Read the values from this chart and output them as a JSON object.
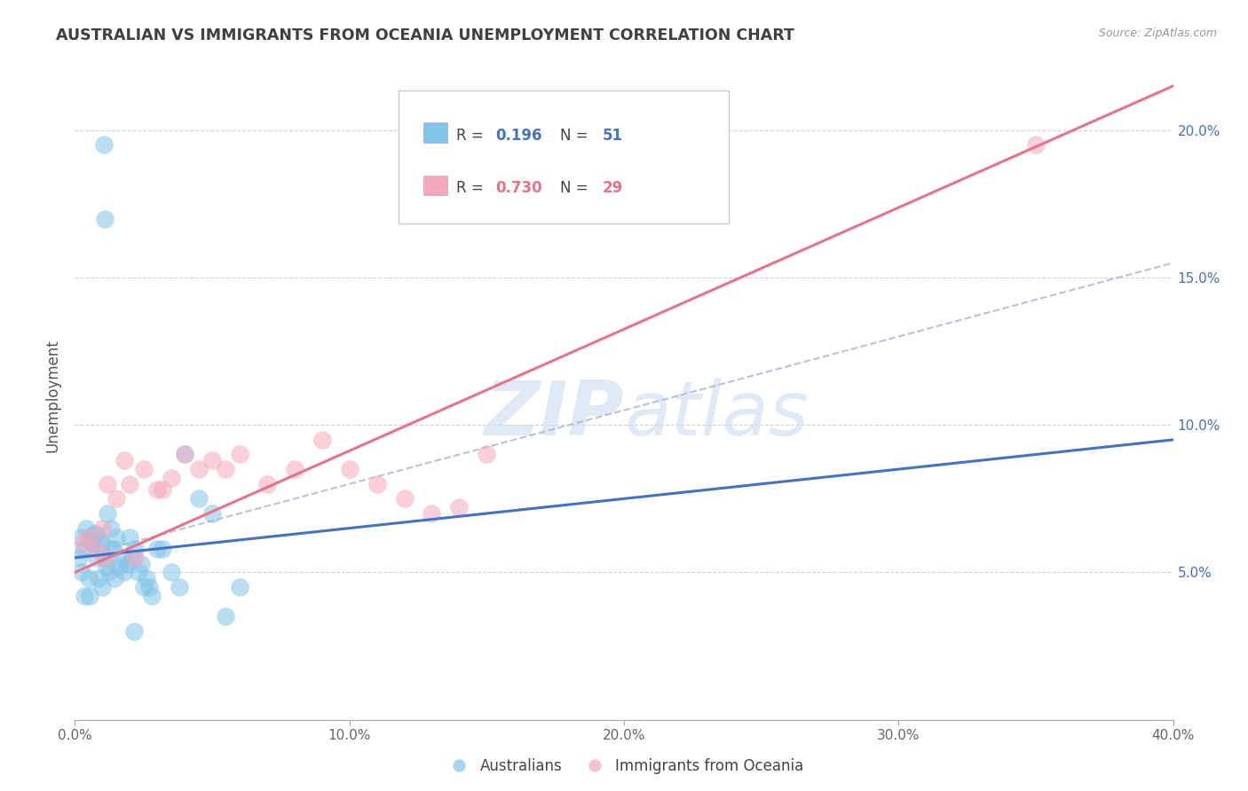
{
  "title": "AUSTRALIAN VS IMMIGRANTS FROM OCEANIA UNEMPLOYMENT CORRELATION CHART",
  "source": "Source: ZipAtlas.com",
  "ylabel": "Unemployment",
  "color_blue": "#82c4e8",
  "color_pink": "#f5a8bc",
  "line_blue": "#4472c4",
  "line_pink": "#e8728c",
  "line_dash": "#b0b8d0",
  "watermark_color": "#ccddf0",
  "background": "#ffffff",
  "grid_color": "#c8c8c8",
  "title_color": "#404040",
  "tick_color_blue": "#4472c4",
  "tick_color_gray": "#666666",
  "aus_x": [
    0.2,
    0.3,
    0.4,
    0.5,
    0.6,
    0.7,
    0.8,
    0.9,
    1.0,
    1.1,
    1.2,
    1.3,
    1.4,
    1.5,
    1.6,
    1.7,
    1.8,
    1.9,
    2.0,
    2.1,
    2.2,
    2.3,
    2.4,
    2.5,
    2.6,
    2.7,
    2.8,
    3.0,
    3.2,
    3.5,
    3.8,
    4.0,
    4.5,
    5.0,
    5.5,
    6.0,
    0.15,
    0.25,
    0.35,
    0.55,
    0.65,
    0.75,
    0.85,
    0.95,
    1.05,
    1.15,
    1.25,
    1.35,
    1.45,
    2.15,
    1.1
  ],
  "aus_y": [
    6.2,
    5.8,
    6.5,
    4.8,
    6.0,
    6.3,
    5.5,
    6.1,
    4.5,
    5.5,
    7.0,
    6.5,
    5.8,
    6.2,
    5.2,
    5.5,
    5.0,
    5.3,
    6.2,
    5.5,
    5.8,
    5.0,
    5.3,
    4.5,
    4.8,
    4.5,
    4.2,
    5.8,
    5.8,
    5.0,
    4.5,
    9.0,
    7.5,
    7.0,
    3.5,
    4.5,
    5.5,
    5.0,
    4.2,
    4.2,
    6.0,
    6.3,
    4.8,
    6.0,
    19.5,
    5.2,
    5.0,
    5.8,
    4.8,
    3.0,
    17.0
  ],
  "imm_x": [
    0.3,
    0.5,
    0.8,
    1.0,
    1.2,
    1.5,
    1.8,
    2.0,
    2.5,
    3.0,
    3.5,
    4.0,
    4.5,
    5.0,
    5.5,
    6.0,
    7.0,
    8.0,
    9.0,
    10.0,
    11.0,
    12.0,
    13.0,
    14.0,
    15.0,
    1.1,
    2.2,
    3.2,
    35.0
  ],
  "imm_y": [
    6.0,
    6.2,
    5.8,
    6.5,
    8.0,
    7.5,
    8.8,
    8.0,
    8.5,
    7.8,
    8.2,
    9.0,
    8.5,
    8.8,
    8.5,
    9.0,
    8.0,
    8.5,
    9.5,
    8.5,
    8.0,
    7.5,
    7.0,
    7.2,
    9.0,
    5.5,
    5.5,
    7.8,
    19.5
  ],
  "blue_line_x0": 0,
  "blue_line_y0": 5.5,
  "blue_line_x1": 40,
  "blue_line_y1": 9.5,
  "pink_line_x0": 0,
  "pink_line_y0": 5.0,
  "pink_line_x1": 40,
  "pink_line_y1": 21.5,
  "dash_line_x0": 0,
  "dash_line_y0": 5.5,
  "dash_line_x1": 40,
  "dash_line_y1": 15.5,
  "xlim": [
    0,
    40
  ],
  "ylim": [
    0,
    22
  ],
  "xticks": [
    0,
    10,
    20,
    30,
    40
  ],
  "yticks_right": [
    5,
    10,
    15,
    20
  ],
  "legend_R1": "R = ",
  "legend_V1": "0.196",
  "legend_N1_label": "N = ",
  "legend_N1_val": "51",
  "legend_R2": "R = ",
  "legend_V2": "0.730",
  "legend_N2_label": "N = ",
  "legend_N2_val": "29"
}
